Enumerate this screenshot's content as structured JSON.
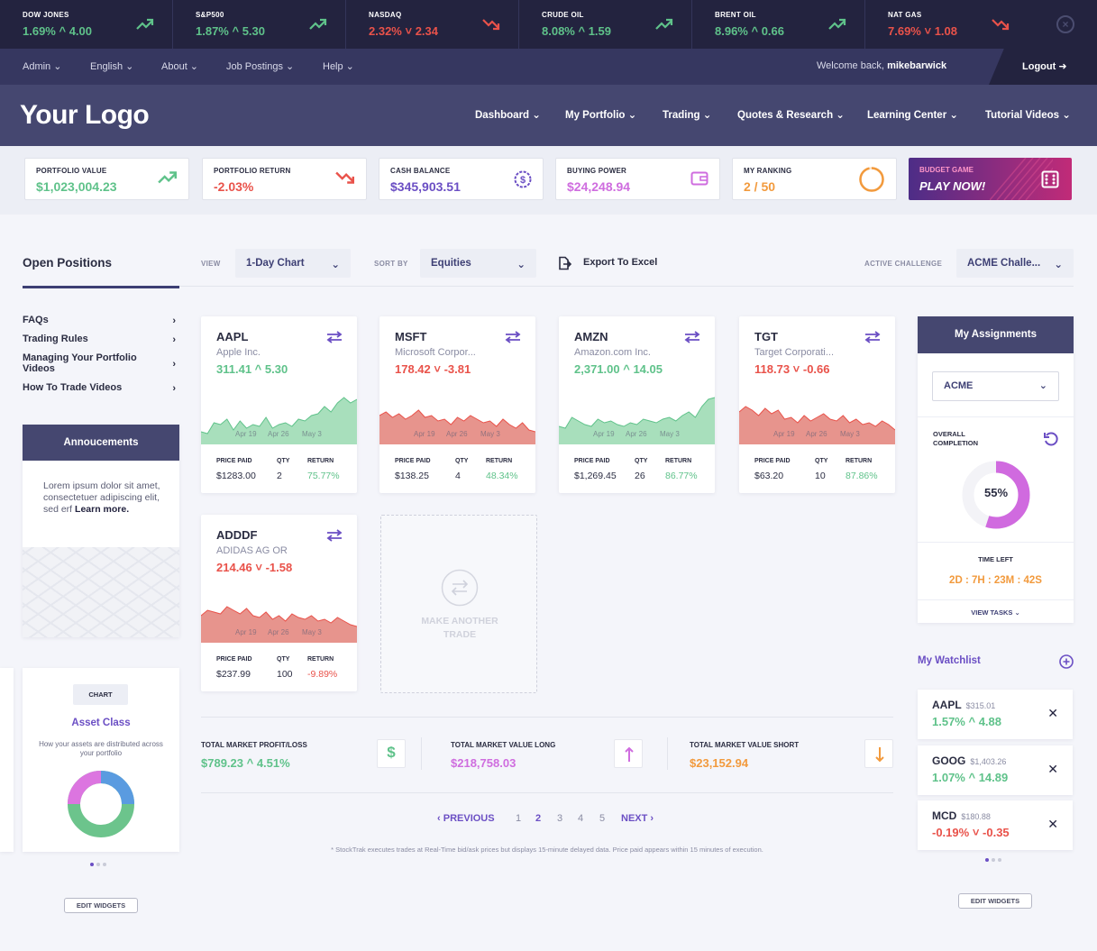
{
  "ticker": {
    "items": [
      {
        "name": "DOW JONES",
        "pct": "1.69%",
        "chg": "4.00",
        "dir": "up"
      },
      {
        "name": "S&P500",
        "pct": "1.87%",
        "chg": "5.30",
        "dir": "up"
      },
      {
        "name": "NASDAQ",
        "pct": "2.32%",
        "chg": "2.34",
        "dir": "down"
      },
      {
        "name": "CRUDE OIL",
        "pct": "8.08%",
        "chg": "1.59",
        "dir": "up"
      },
      {
        "name": "BRENT OIL",
        "pct": "8.96%",
        "chg": "0.66",
        "dir": "up"
      },
      {
        "name": "NAT GAS",
        "pct": "7.69%",
        "chg": "1.08",
        "dir": "down"
      }
    ]
  },
  "utility": {
    "menus": [
      "Admin",
      "English",
      "About",
      "Job Postings",
      "Help"
    ],
    "welcome_prefix": "Welcome back,",
    "username": "mikebarwick",
    "logout": "Logout"
  },
  "header": {
    "logo": "Your Logo",
    "nav": [
      "Dashboard",
      "My Portfolio",
      "Trading",
      "Quotes & Research",
      "Learning Center",
      "Tutorial Videos"
    ]
  },
  "stats": [
    {
      "label": "PORTFOLIO VALUE",
      "value": "$1,023,004.23",
      "color": "#5fc28a",
      "icon": "trend-up-icon"
    },
    {
      "label": "PORTFOLIO RETURN",
      "value": "-2.03%",
      "color": "#e9524a",
      "icon": "trend-down-icon"
    },
    {
      "label": "CASH BALANCE",
      "value": "$345,903.51",
      "color": "#6b4fc4",
      "icon": "dollar-coin-icon"
    },
    {
      "label": "BUYING POWER",
      "value": "$24,248.94",
      "color": "#cf6ddf",
      "icon": "wallet-icon"
    },
    {
      "label": "MY RANKING",
      "value": "2 / 50",
      "color": "#f29a3d",
      "icon": "ranking-ring-icon",
      "ranking_fraction": 0.96
    }
  ],
  "budget": {
    "label": "BUDGET GAME",
    "cta": "PLAY NOW!"
  },
  "positions_bar": {
    "title": "Open Positions",
    "view_label": "VIEW",
    "view_value": "1-Day Chart",
    "sort_label": "SORT BY",
    "sort_value": "Equities",
    "export": "Export To Excel",
    "challenge_label": "ACTIVE CHALLENGE",
    "challenge_value": "ACME Challe..."
  },
  "faq": [
    "FAQs",
    "Trading Rules",
    "Managing Your Portfolio Videos",
    "How To Trade Videos"
  ],
  "announcements": {
    "title": "Annoucements",
    "body": "Lorem ipsum dolor sit amet, consectetuer adipiscing elit, sed erf",
    "link": "Learn more."
  },
  "asset_widget": {
    "badge": "CHART",
    "title": "Asset Class",
    "desc": "How your assets are distributed across your portfolio"
  },
  "edit_widgets": "EDIT WIDGETS",
  "cards": [
    {
      "sym": "AAPL",
      "name": "Apple Inc.",
      "price": "311.41",
      "chg": "5.30",
      "dir": "up",
      "paid": "$1283.00",
      "qty": "2",
      "ret": "75.77%"
    },
    {
      "sym": "MSFT",
      "name": "Microsoft Corpor...",
      "price": "178.42",
      "chg": "-3.81",
      "dir": "down",
      "paid": "$138.25",
      "qty": "4",
      "ret": "48.34%"
    },
    {
      "sym": "AMZN",
      "name": "Amazon.com Inc.",
      "price": "2,371.00",
      "chg": "14.05",
      "dir": "up",
      "paid": "$1,269.45",
      "qty": "26",
      "ret": "86.77%"
    },
    {
      "sym": "TGT",
      "name": "Target Corporati...",
      "price": "118.73",
      "chg": "-0.66",
      "dir": "down",
      "paid": "$63.20",
      "qty": "10",
      "ret": "87.86%"
    },
    {
      "sym": "ADDDF",
      "name": "ADIDAS AG OR",
      "price": "214.46",
      "chg": "-1.58",
      "dir": "down",
      "paid": "$237.99",
      "qty": "100",
      "ret": "-9.89%"
    }
  ],
  "card_labels": {
    "paid": "PRICE PAID",
    "qty": "QTY",
    "ret": "RETURN",
    "dates": [
      "Apr 19",
      "Apr 26",
      "May 3"
    ]
  },
  "make_trade": "MAKE ANOTHER TRADE",
  "totals": [
    {
      "label": "TOTAL MARKET PROFIT/LOSS",
      "value": "$789.23",
      "extra": "4.51%",
      "color": "#5fc28a"
    },
    {
      "label": "TOTAL MARKET VALUE LONG",
      "value": "$218,758.03",
      "color": "#cf6ddf"
    },
    {
      "label": "TOTAL MARKET VALUE SHORT",
      "value": "$23,152.94",
      "color": "#f29a3d"
    }
  ],
  "pagination": {
    "prev": "PREVIOUS",
    "pages": [
      "1",
      "2",
      "3",
      "4",
      "5"
    ],
    "current": "2",
    "next": "NEXT"
  },
  "footnote": "* StockTrak executes trades at Real-Time bid/ask prices but displays 15-minute delayed data. Price paid appears within 15 minutes of execution.",
  "assignments": {
    "title": "My Assignments",
    "select": "ACME",
    "completion_label": "OVERALL COMPLETION",
    "completion": "55%",
    "completion_fraction": 0.55,
    "time_label": "TIME LEFT",
    "time": "2D : 7H : 23M : 42S",
    "view_tasks": "VIEW TASKS"
  },
  "watchlist": {
    "title": "My Watchlist",
    "items": [
      {
        "sym": "AAPL",
        "price": "$315.01",
        "pct": "1.57%",
        "chg": "4.88",
        "dir": "up"
      },
      {
        "sym": "GOOG",
        "price": "$1,403.26",
        "pct": "1.07%",
        "chg": "14.89",
        "dir": "up"
      },
      {
        "sym": "MCD",
        "price": "$180.88",
        "pct": "-0.19%",
        "chg": "-0.35",
        "dir": "down"
      }
    ]
  }
}
